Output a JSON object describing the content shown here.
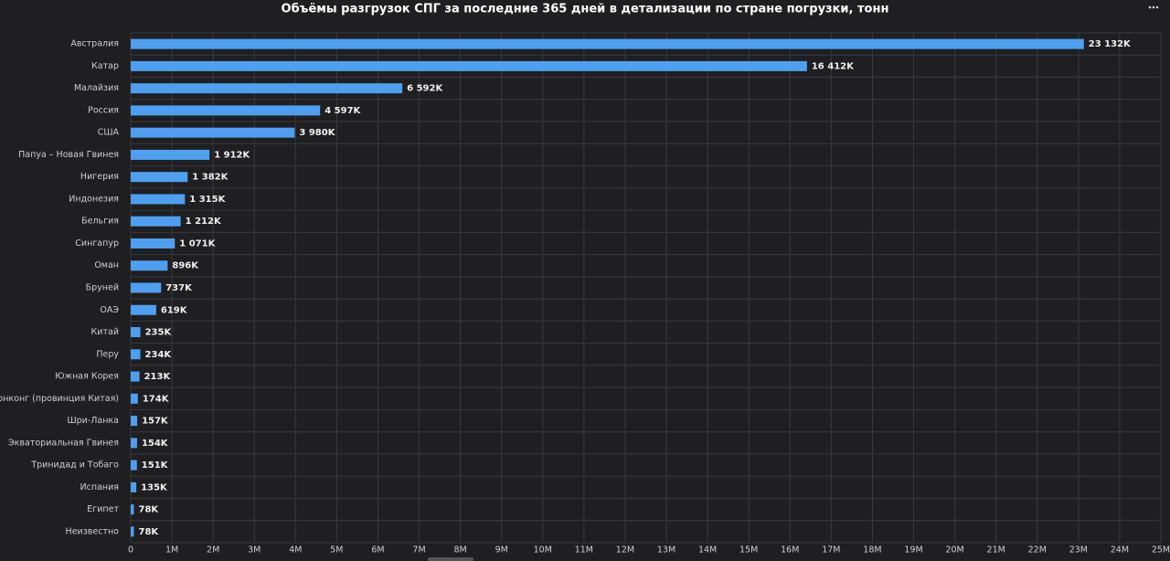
{
  "chart_data": {
    "type": "hbar",
    "title": "Объёмы разгрузок СПГ за последние 365 дней в детализации по стране погрузки, тонн",
    "categories": [
      "Австралия",
      "Катар",
      "Малайзия",
      "Россия",
      "США",
      "Папуа – Новая Гвинея",
      "Нигерия",
      "Индонезия",
      "Бельгия",
      "Сингапур",
      "Оман",
      "Бруней",
      "ОАЭ",
      "Китай",
      "Перу",
      "Южная Корея",
      "Гонконг (провинция Китая)",
      "Шри-Ланка",
      "Экваториальная Гвинея",
      "Тринидад и Тобаго",
      "Испания",
      "Египет",
      "Неизвестно"
    ],
    "values": [
      23132000,
      16412000,
      6592000,
      4597000,
      3980000,
      1912000,
      1382000,
      1315000,
      1212000,
      1071000,
      896000,
      737000,
      619000,
      235000,
      234000,
      213000,
      174000,
      157000,
      154000,
      151000,
      135000,
      78000,
      78000
    ],
    "value_labels": [
      "23 132K",
      "16 412K",
      "6 592K",
      "4 597K",
      "3 980K",
      "1 912K",
      "1 382K",
      "1 315K",
      "1 212K",
      "1 071K",
      "896K",
      "737K",
      "619K",
      "235K",
      "234K",
      "213K",
      "174K",
      "157K",
      "154K",
      "151K",
      "135K",
      "78K",
      "78K"
    ],
    "color": "#4f9ff0",
    "xlim": [
      0,
      25000000
    ],
    "xticks": [
      0,
      {
        "value": 1000000,
        "label": "1M"
      },
      {
        "value": 2000000,
        "label": "2M"
      },
      {
        "value": 3000000,
        "label": "3M"
      },
      {
        "value": 4000000,
        "label": "4M"
      },
      {
        "value": 5000000,
        "label": "5M"
      },
      {
        "value": 6000000,
        "label": "6M"
      },
      {
        "value": 7000000,
        "label": "7M"
      },
      {
        "value": 8000000,
        "label": "8M"
      },
      {
        "value": 9000000,
        "label": "9M"
      },
      {
        "value": 10000000,
        "label": "10M"
      },
      {
        "value": 11000000,
        "label": "11M"
      },
      {
        "value": 12000000,
        "label": "12M"
      },
      {
        "value": 13000000,
        "label": "13M"
      },
      {
        "value": 14000000,
        "label": "14M"
      },
      {
        "value": 15000000,
        "label": "15M"
      },
      {
        "value": 16000000,
        "label": "16M"
      },
      {
        "value": 17000000,
        "label": "17M"
      },
      {
        "value": 18000000,
        "label": "18M"
      },
      {
        "value": 19000000,
        "label": "19M"
      },
      {
        "value": 20000000,
        "label": "20M"
      },
      {
        "value": 21000000,
        "label": "21M"
      },
      {
        "value": 22000000,
        "label": "22M"
      },
      {
        "value": 23000000,
        "label": "23M"
      },
      {
        "value": 24000000,
        "label": "24M"
      },
      {
        "value": 25000000,
        "label": "25M"
      }
    ],
    "grid": true
  }
}
